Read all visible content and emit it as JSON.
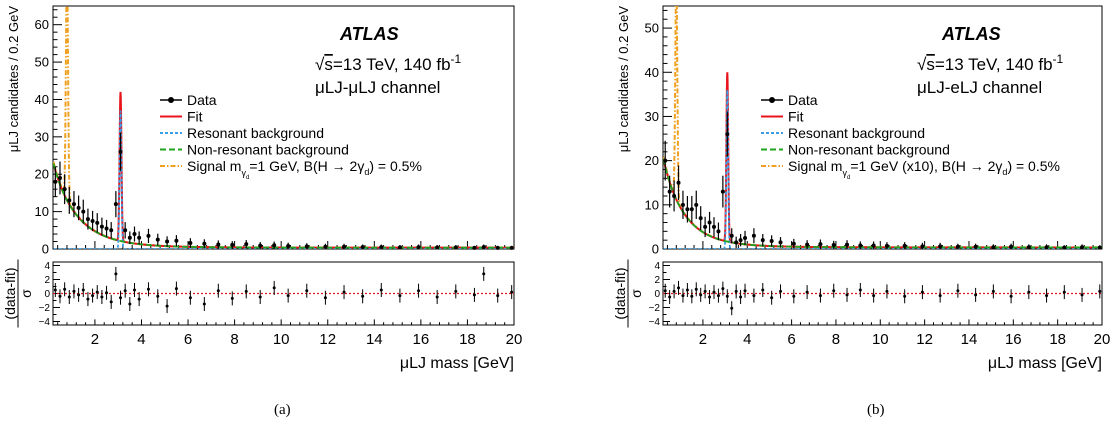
{
  "colors": {
    "data": "#000000",
    "fit": "#e8141b",
    "resonant": "#3a9ee6",
    "nonresonant": "#1ea51e",
    "signal": "#f0a020"
  },
  "chart_data": [
    {
      "type": "line",
      "panel": "(a)",
      "experiment": "ATLAS",
      "energy_sqrt": "s",
      "energy_rest": "=13 TeV, 140 fb",
      "energy_sup": "-1",
      "channel": "μLJ-μLJ channel",
      "xlabel": "μLJ mass [GeV]",
      "ylabel": "μLJ candidates / 0.2 GeV",
      "ratio_ylabel_num": "(data-fit)",
      "ratio_ylabel_den": "σ",
      "xlim": [
        0.2,
        20
      ],
      "ylim": [
        0,
        65
      ],
      "ratio_ylim": [
        -4.5,
        4.5
      ],
      "x_ticks": [
        "2",
        "4",
        "6",
        "8",
        "10",
        "12",
        "14",
        "16",
        "18",
        "20"
      ],
      "y_ticks": [
        "0",
        "10",
        "20",
        "30",
        "40",
        "50",
        "60"
      ],
      "ratio_ticks": [
        "4",
        "2",
        "0",
        "−2",
        "−4"
      ],
      "legend": [
        {
          "key": "data",
          "text": "Data"
        },
        {
          "key": "fit",
          "text": "Fit"
        },
        {
          "key": "resonant",
          "text": "Resonant background"
        },
        {
          "key": "nonresonant",
          "text": "Non-resonant background"
        },
        {
          "key": "signal",
          "text": "Signal m",
          "sub": "γ",
          "subsub": "d",
          "after": "=1 GeV, B(H → 2γ",
          "after_sub": "d",
          "tail": ") = 0.5%"
        }
      ],
      "background_model": {
        "amplitude": 21,
        "decay": 1.1,
        "floor": 0.35,
        "offset": 0.05
      },
      "resonance": {
        "x": 3.1,
        "peak": 42,
        "resonant_peak": 37
      },
      "signal": {
        "x": 0.8,
        "peak": 62
      },
      "data": {
        "x": [
          0.3,
          0.5,
          0.7,
          0.9,
          1.1,
          1.3,
          1.5,
          1.7,
          1.9,
          2.1,
          2.3,
          2.5,
          2.7,
          2.9,
          3.1,
          3.3,
          3.5,
          3.7,
          3.9,
          4.3,
          4.7,
          5.1,
          5.5,
          6.1,
          6.7,
          7.3,
          7.9,
          8.5,
          9.1,
          9.7,
          10.3,
          11.1,
          11.9,
          12.7,
          13.5,
          14.3,
          15.1,
          15.9,
          16.7,
          17.5,
          18.3,
          18.7,
          19.3,
          19.9
        ],
        "y": [
          18,
          19,
          16,
          13,
          12,
          11,
          10,
          8,
          7.5,
          7,
          6,
          5.5,
          5,
          12,
          26,
          5,
          3,
          4,
          3,
          3.5,
          2.5,
          2,
          2.2,
          1.6,
          1.4,
          1.2,
          1.1,
          1.3,
          0.9,
          1.0,
          0.8,
          0.7,
          0.6,
          0.6,
          0.5,
          0.5,
          0.4,
          0.5,
          0.4,
          0.4,
          0.3,
          0.5,
          0.3,
          0.3
        ],
        "err": [
          4,
          4.4,
          4,
          3.6,
          3.5,
          3.3,
          3.2,
          2.8,
          2.7,
          2.6,
          2.4,
          2.3,
          2.2,
          3.5,
          5.1,
          2.2,
          1.7,
          2,
          1.7,
          1.9,
          1.6,
          1.4,
          1.5,
          1.3,
          1.2,
          1.1,
          1.0,
          1.1,
          0.95,
          1.0,
          0.9,
          0.85,
          0.8,
          0.8,
          0.7,
          0.7,
          0.65,
          0.7,
          0.65,
          0.65,
          0.55,
          0.7,
          0.55,
          0.55
        ]
      },
      "pulls": [
        0.5,
        -0.4,
        0.6,
        -0.5,
        0.3,
        -0.2,
        0.5,
        -0.8,
        -0.3,
        0.2,
        -0.5,
        0.1,
        -1.2,
        2.8,
        -0.6,
        0.4,
        -1.5,
        0.5,
        -0.8,
        0.6,
        -0.4,
        -1.8,
        0.7,
        -0.6,
        -1.5,
        0.4,
        -0.7,
        0.3,
        -0.5,
        0.8,
        -0.3,
        0.4,
        -0.6,
        0.2,
        -0.4,
        0.5,
        -0.3,
        0.4,
        -0.5,
        0.3,
        -0.2,
        2.8,
        -0.3,
        0.2
      ]
    },
    {
      "type": "line",
      "panel": "(b)",
      "experiment": "ATLAS",
      "energy_sqrt": "s",
      "energy_rest": "=13 TeV, 140 fb",
      "energy_sup": "-1",
      "channel": "μLJ-eLJ channel",
      "xlabel": "μLJ mass [GeV]",
      "ylabel": "μLJ candidates / 0.2 GeV",
      "ratio_ylabel_num": "(data-fit)",
      "ratio_ylabel_den": "σ",
      "xlim": [
        0.2,
        20
      ],
      "ylim": [
        0,
        55
      ],
      "ratio_ylim": [
        -4.5,
        4.5
      ],
      "x_ticks": [
        "2",
        "4",
        "6",
        "8",
        "10",
        "12",
        "14",
        "16",
        "18",
        "20"
      ],
      "y_ticks": [
        "0",
        "10",
        "20",
        "30",
        "40",
        "50"
      ],
      "ratio_ticks": [
        "4",
        "2",
        "0",
        "−2",
        "−4"
      ],
      "legend": [
        {
          "key": "data",
          "text": "Data"
        },
        {
          "key": "fit",
          "text": "Fit"
        },
        {
          "key": "resonant",
          "text": "Resonant background"
        },
        {
          "key": "nonresonant",
          "text": "Non-resonant background"
        },
        {
          "key": "signal",
          "text": "Signal m",
          "sub": "γ",
          "subsub": "d",
          "after": "=1 GeV (x10), B(H → 2γ",
          "after_sub": "d",
          "tail": ") = 0.5%"
        }
      ],
      "background_model": {
        "amplitude": 19,
        "decay": 1.0,
        "floor": 0.35,
        "offset": 0.05
      },
      "resonance": {
        "x": 3.1,
        "peak": 40,
        "resonant_peak": 36
      },
      "signal": {
        "x": 0.8,
        "peak": 50
      },
      "data": {
        "x": [
          0.3,
          0.5,
          0.7,
          0.9,
          1.1,
          1.3,
          1.5,
          1.7,
          1.9,
          2.1,
          2.3,
          2.5,
          2.7,
          2.9,
          3.1,
          3.3,
          3.5,
          3.7,
          3.9,
          4.3,
          4.7,
          5.1,
          5.5,
          6.1,
          6.7,
          7.3,
          7.9,
          8.5,
          9.1,
          9.7,
          10.3,
          11.1,
          11.9,
          12.7,
          13.5,
          14.3,
          15.1,
          15.9,
          16.7,
          17.5,
          18.3,
          19.1,
          19.9
        ],
        "y": [
          20,
          13,
          12,
          15,
          10,
          9,
          9,
          10,
          7,
          5,
          6,
          5,
          4,
          13,
          26,
          3,
          1.5,
          2,
          2.5,
          3,
          2,
          1.8,
          1.5,
          1.2,
          1.0,
          1.1,
          0.9,
          1.0,
          0.8,
          0.8,
          0.7,
          0.7,
          0.6,
          0.6,
          0.5,
          0.5,
          0.4,
          0.5,
          0.4,
          0.4,
          0.3,
          0.4,
          0.3
        ],
        "err": [
          4.5,
          3.6,
          3.5,
          3.9,
          3.2,
          3,
          3,
          3.2,
          2.7,
          2.3,
          2.4,
          2.2,
          2,
          3.6,
          5.1,
          1.7,
          1.3,
          1.4,
          1.6,
          1.7,
          1.4,
          1.3,
          1.2,
          1.1,
          1.0,
          1.05,
          0.95,
          1.0,
          0.9,
          0.9,
          0.85,
          0.85,
          0.8,
          0.8,
          0.7,
          0.7,
          0.65,
          0.7,
          0.65,
          0.65,
          0.55,
          0.65,
          0.55
        ]
      },
      "pulls": [
        0.4,
        -0.5,
        0.3,
        0.8,
        -0.3,
        0.5,
        -0.4,
        0.6,
        -0.2,
        0.3,
        -0.5,
        0.2,
        -0.3,
        0.7,
        -0.4,
        -2.1,
        0.3,
        -0.5,
        0.4,
        -0.3,
        0.5,
        -0.6,
        0.3,
        -0.4,
        0.2,
        -0.3,
        0.4,
        -0.2,
        0.5,
        -0.3,
        0.3,
        -0.4,
        0.2,
        -0.3,
        0.4,
        -0.2,
        0.3,
        -0.4,
        0.2,
        -0.3,
        0.2,
        -0.2,
        0.3
      ]
    }
  ]
}
